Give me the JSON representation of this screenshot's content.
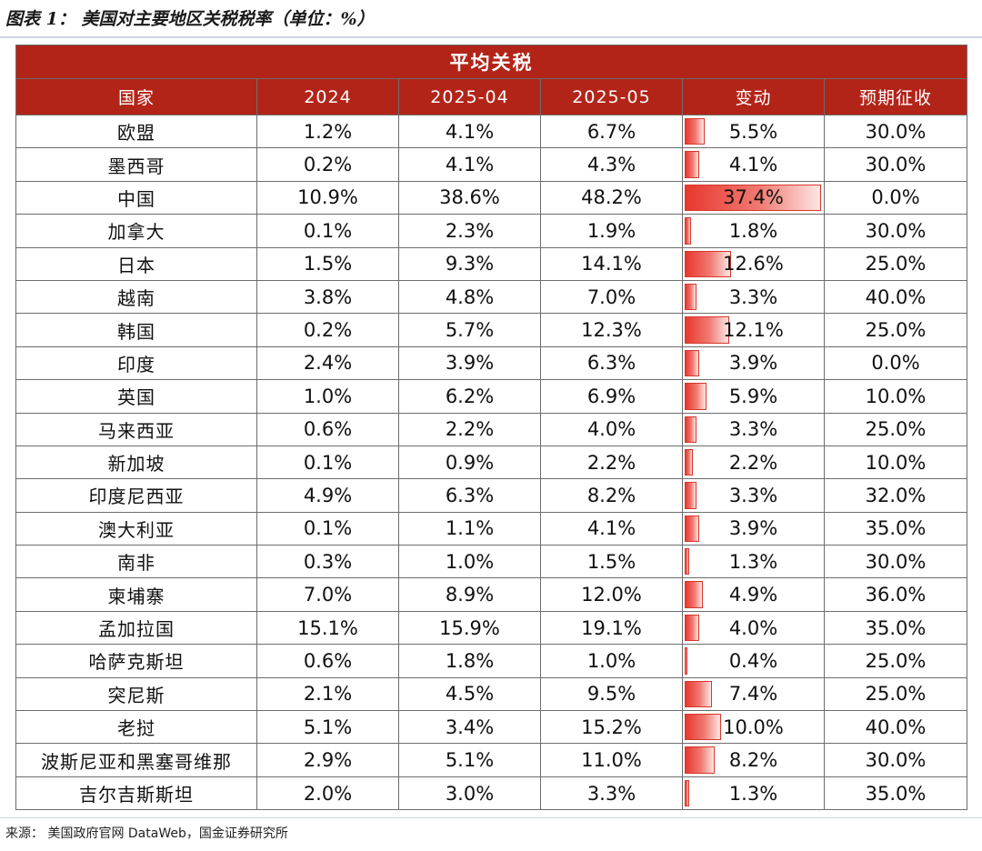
{
  "caption": "图表 1：  美国对主要地区关税税率（单位：%）",
  "table": {
    "title": "平均关税",
    "headers": [
      "国家",
      "2024",
      "2025-04",
      "2025-05",
      "变动",
      "预期征收"
    ],
    "rows": [
      {
        "country": "欧盟",
        "y2024": "1.2%",
        "apr": "4.1%",
        "may": "6.7%",
        "change": "5.5%",
        "change_value": 5.5,
        "expected": "30.0%"
      },
      {
        "country": "墨西哥",
        "y2024": "0.2%",
        "apr": "4.1%",
        "may": "4.3%",
        "change": "4.1%",
        "change_value": 4.1,
        "expected": "30.0%"
      },
      {
        "country": "中国",
        "y2024": "10.9%",
        "apr": "38.6%",
        "may": "48.2%",
        "change": "37.4%",
        "change_value": 37.4,
        "expected": "0.0%"
      },
      {
        "country": "加拿大",
        "y2024": "0.1%",
        "apr": "2.3%",
        "may": "1.9%",
        "change": "1.8%",
        "change_value": 1.8,
        "expected": "30.0%"
      },
      {
        "country": "日本",
        "y2024": "1.5%",
        "apr": "9.3%",
        "may": "14.1%",
        "change": "12.6%",
        "change_value": 12.6,
        "expected": "25.0%"
      },
      {
        "country": "越南",
        "y2024": "3.8%",
        "apr": "4.8%",
        "may": "7.0%",
        "change": "3.3%",
        "change_value": 3.3,
        "expected": "40.0%"
      },
      {
        "country": "韩国",
        "y2024": "0.2%",
        "apr": "5.7%",
        "may": "12.3%",
        "change": "12.1%",
        "change_value": 12.1,
        "expected": "25.0%"
      },
      {
        "country": "印度",
        "y2024": "2.4%",
        "apr": "3.9%",
        "may": "6.3%",
        "change": "3.9%",
        "change_value": 3.9,
        "expected": "0.0%"
      },
      {
        "country": "英国",
        "y2024": "1.0%",
        "apr": "6.2%",
        "may": "6.9%",
        "change": "5.9%",
        "change_value": 5.9,
        "expected": "10.0%"
      },
      {
        "country": "马来西亚",
        "y2024": "0.6%",
        "apr": "2.2%",
        "may": "4.0%",
        "change": "3.3%",
        "change_value": 3.3,
        "expected": "25.0%"
      },
      {
        "country": "新加坡",
        "y2024": "0.1%",
        "apr": "0.9%",
        "may": "2.2%",
        "change": "2.2%",
        "change_value": 2.2,
        "expected": "10.0%"
      },
      {
        "country": "印度尼西亚",
        "y2024": "4.9%",
        "apr": "6.3%",
        "may": "8.2%",
        "change": "3.3%",
        "change_value": 3.3,
        "expected": "32.0%"
      },
      {
        "country": "澳大利亚",
        "y2024": "0.1%",
        "apr": "1.1%",
        "may": "4.1%",
        "change": "3.9%",
        "change_value": 3.9,
        "expected": "35.0%"
      },
      {
        "country": "南非",
        "y2024": "0.3%",
        "apr": "1.0%",
        "may": "1.5%",
        "change": "1.3%",
        "change_value": 1.3,
        "expected": "30.0%"
      },
      {
        "country": "柬埔寨",
        "y2024": "7.0%",
        "apr": "8.9%",
        "may": "12.0%",
        "change": "4.9%",
        "change_value": 4.9,
        "expected": "36.0%"
      },
      {
        "country": "孟加拉国",
        "y2024": "15.1%",
        "apr": "15.9%",
        "may": "19.1%",
        "change": "4.0%",
        "change_value": 4.0,
        "expected": "35.0%"
      },
      {
        "country": "哈萨克斯坦",
        "y2024": "0.6%",
        "apr": "1.8%",
        "may": "1.0%",
        "change": "0.4%",
        "change_value": 0.4,
        "expected": "25.0%"
      },
      {
        "country": "突尼斯",
        "y2024": "2.1%",
        "apr": "4.5%",
        "may": "9.5%",
        "change": "7.4%",
        "change_value": 7.4,
        "expected": "25.0%"
      },
      {
        "country": "老挝",
        "y2024": "5.1%",
        "apr": "3.4%",
        "may": "15.2%",
        "change": "10.0%",
        "change_value": 10.0,
        "expected": "40.0%"
      },
      {
        "country": "波斯尼亚和黑塞哥维那",
        "y2024": "2.9%",
        "apr": "5.1%",
        "may": "11.0%",
        "change": "8.2%",
        "change_value": 8.2,
        "expected": "30.0%"
      },
      {
        "country": "吉尔吉斯斯坦",
        "y2024": "2.0%",
        "apr": "3.0%",
        "may": "3.3%",
        "change": "1.3%",
        "change_value": 1.3,
        "expected": "35.0%"
      }
    ]
  },
  "source": "来源：  美国政府官网 DataWeb，国金证券研究所",
  "colors": {
    "header_bg": "#b32418",
    "bar": "#e8382e"
  }
}
